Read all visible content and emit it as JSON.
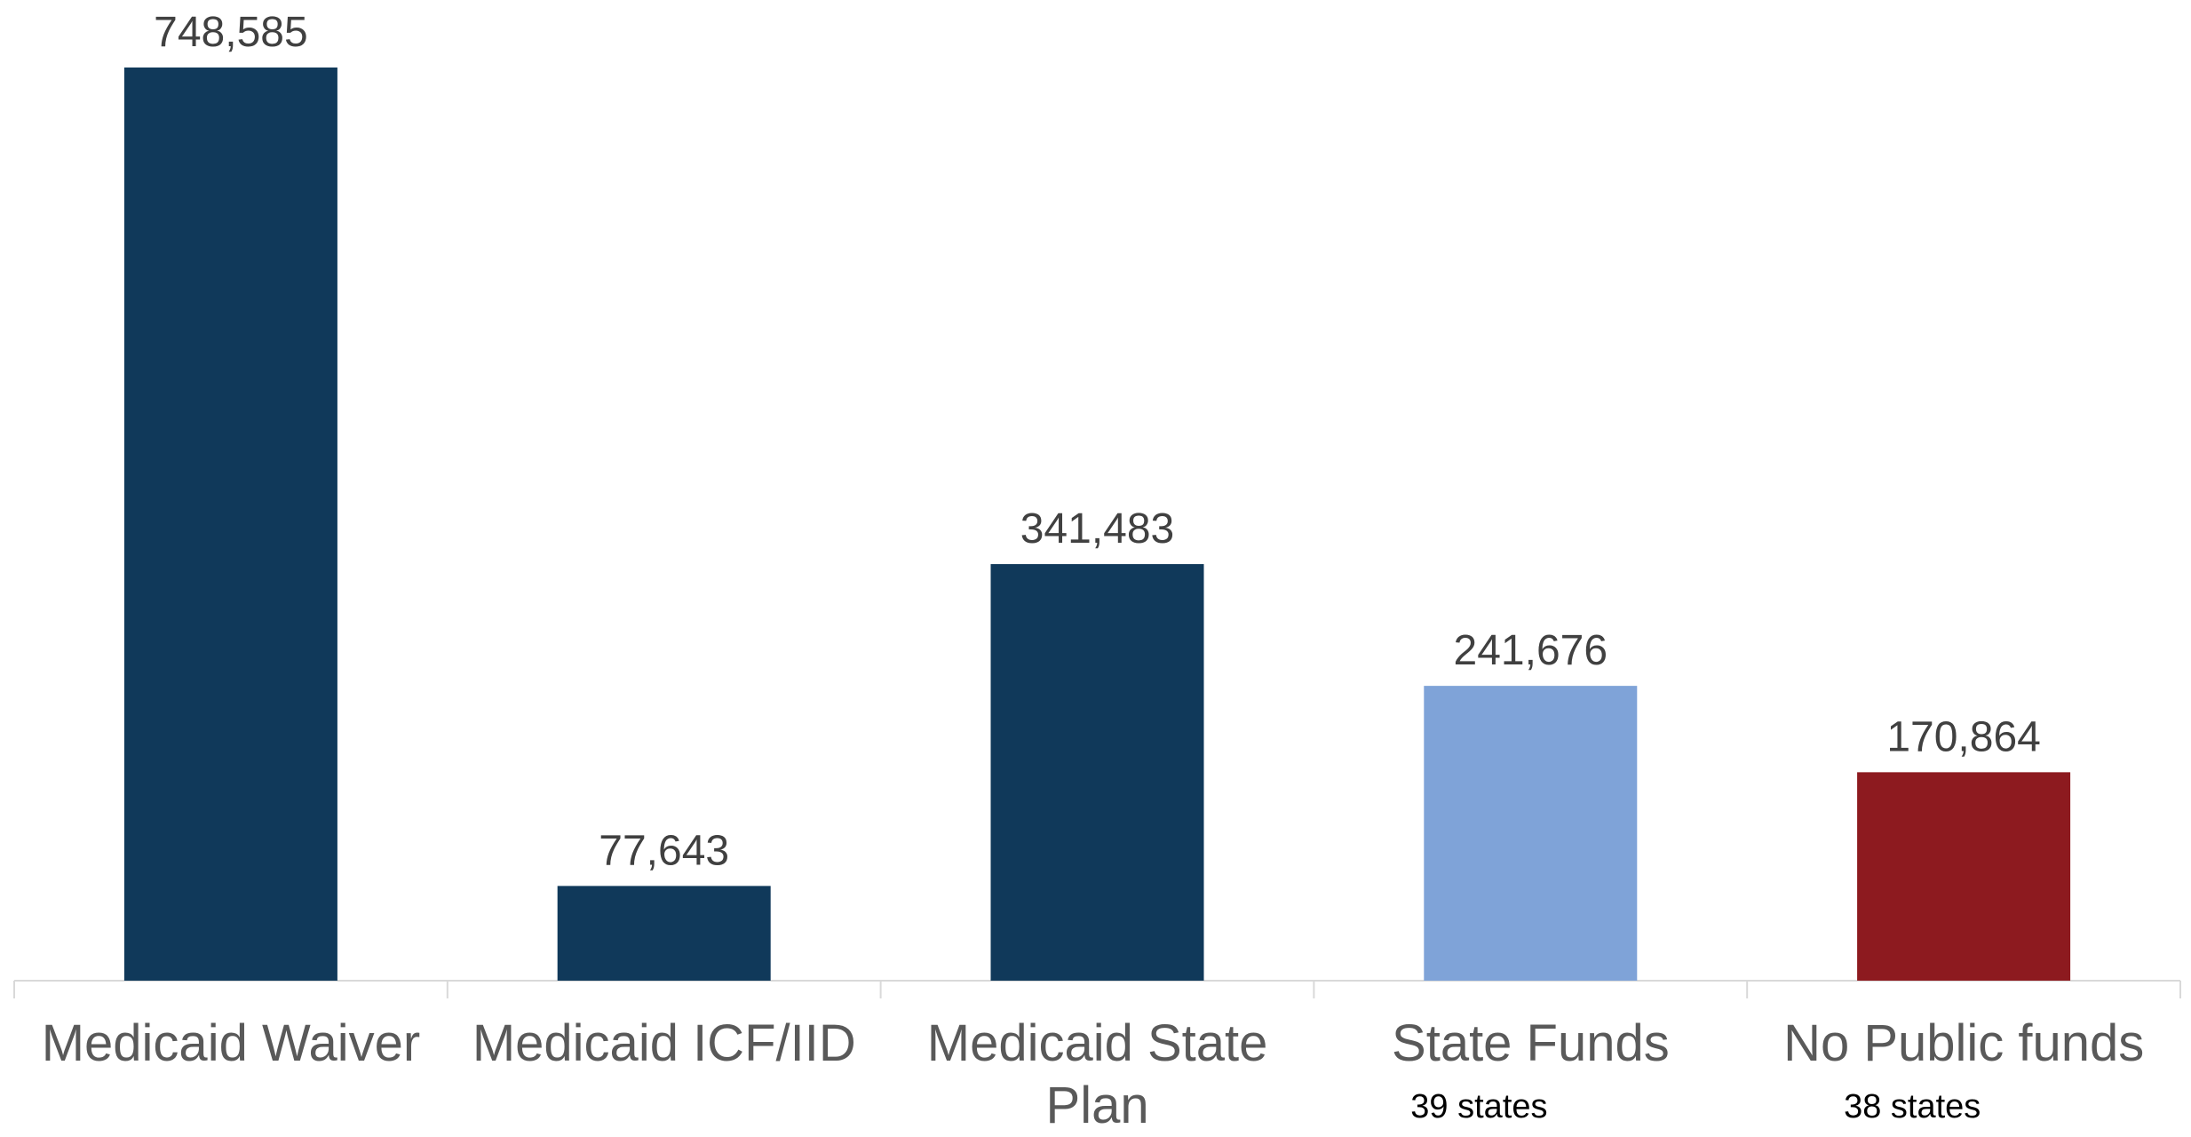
{
  "chart_data": {
    "type": "bar",
    "categories": [
      "Medicaid Waiver",
      "Medicaid ICF/IID",
      "Medicaid State Plan",
      "State Funds",
      "No Public funds"
    ],
    "values": [
      748585,
      77643,
      341483,
      241676,
      170864
    ],
    "value_labels": [
      "748,585",
      "77,643",
      "341,483",
      "241,676",
      "170,864"
    ],
    "colors": [
      "#10395a",
      "#10395a",
      "#10395a",
      "#7fa3d8",
      "#8d1a1f"
    ],
    "category_notes": [
      null,
      null,
      null,
      "39 states",
      "38 states"
    ]
  }
}
